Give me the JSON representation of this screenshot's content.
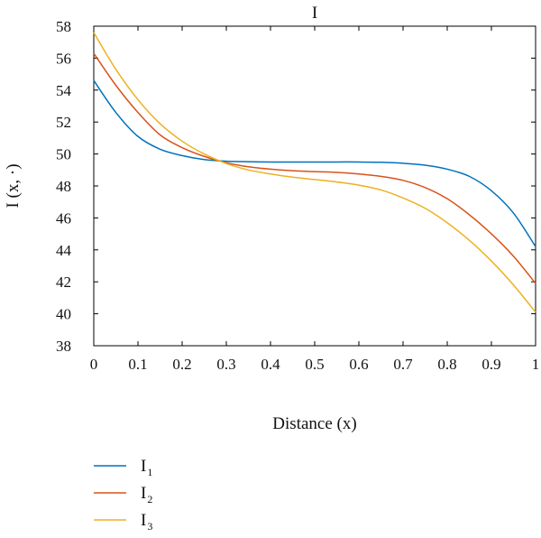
{
  "chart_data": {
    "type": "line",
    "title": "I",
    "xlabel": "Distance (x)",
    "ylabel": "I (x, ·)",
    "xlim": [
      0,
      1
    ],
    "ylim": [
      38,
      58
    ],
    "xticks": [
      0,
      0.1,
      0.2,
      0.3,
      0.4,
      0.5,
      0.6,
      0.7,
      0.8,
      0.9,
      1
    ],
    "xtick_labels": [
      "0",
      "0.1",
      "0.2",
      "0.3",
      "0.4",
      "0.5",
      "0.6",
      "0.7",
      "0.8",
      "0.9",
      "1"
    ],
    "yticks": [
      38,
      40,
      42,
      44,
      46,
      48,
      50,
      52,
      54,
      56,
      58
    ],
    "ytick_labels": [
      "38",
      "40",
      "42",
      "44",
      "46",
      "48",
      "50",
      "52",
      "54",
      "56",
      "58"
    ],
    "grid": false,
    "legend_position": "bottom-left, below plot",
    "series": [
      {
        "name": "I",
        "name_subscript": "1",
        "color": "#0072BD",
        "x": [
          0,
          0.05,
          0.1,
          0.15,
          0.2,
          0.25,
          0.3,
          0.35,
          0.4,
          0.45,
          0.5,
          0.55,
          0.6,
          0.65,
          0.7,
          0.75,
          0.8,
          0.85,
          0.9,
          0.95,
          1
        ],
        "y": [
          54.6,
          52.6,
          51.1,
          50.3,
          49.9,
          49.65,
          49.55,
          49.52,
          49.5,
          49.5,
          49.5,
          49.5,
          49.5,
          49.48,
          49.42,
          49.3,
          49.05,
          48.6,
          47.7,
          46.3,
          44.2
        ]
      },
      {
        "name": "I",
        "name_subscript": "2",
        "color": "#D95319",
        "x": [
          0,
          0.05,
          0.1,
          0.15,
          0.2,
          0.25,
          0.3,
          0.35,
          0.4,
          0.45,
          0.5,
          0.55,
          0.6,
          0.65,
          0.7,
          0.75,
          0.8,
          0.85,
          0.9,
          0.95,
          1
        ],
        "y": [
          56.3,
          54.3,
          52.6,
          51.2,
          50.4,
          49.85,
          49.45,
          49.2,
          49.05,
          48.95,
          48.9,
          48.85,
          48.75,
          48.6,
          48.35,
          47.9,
          47.2,
          46.2,
          45.0,
          43.6,
          41.9
        ]
      },
      {
        "name": "I",
        "name_subscript": "3",
        "color": "#EDB120",
        "x": [
          0,
          0.05,
          0.1,
          0.15,
          0.2,
          0.25,
          0.3,
          0.35,
          0.4,
          0.45,
          0.5,
          0.55,
          0.6,
          0.65,
          0.7,
          0.75,
          0.8,
          0.85,
          0.9,
          0.95,
          1
        ],
        "y": [
          57.6,
          55.3,
          53.4,
          51.9,
          50.8,
          50.0,
          49.4,
          49.0,
          48.75,
          48.55,
          48.4,
          48.25,
          48.05,
          47.75,
          47.25,
          46.6,
          45.7,
          44.6,
          43.3,
          41.8,
          40.1
        ]
      }
    ]
  }
}
